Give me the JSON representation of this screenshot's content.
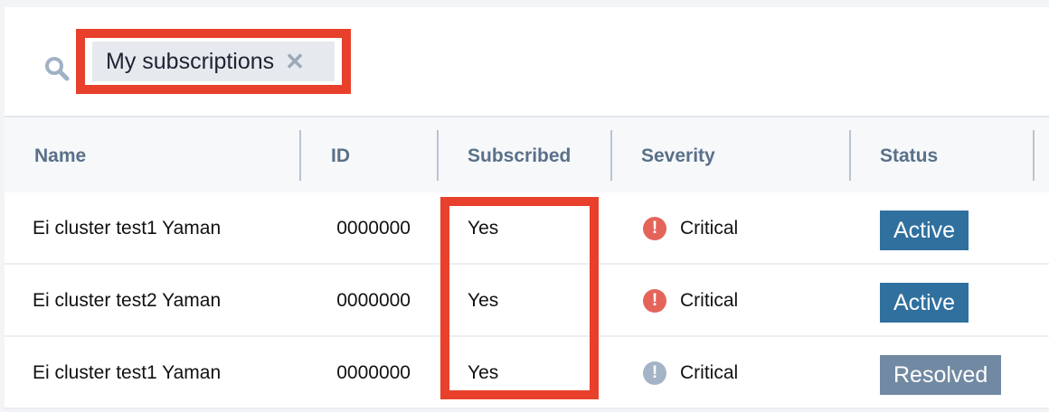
{
  "search": {
    "filter_tag": "My subscriptions",
    "remove_icon": "close-icon"
  },
  "columns": [
    "Name",
    "ID",
    "Subscribed",
    "Severity",
    "Status"
  ],
  "rows": [
    {
      "name": "Ei cluster test1 Yaman",
      "id": "0000000",
      "subscribed": "Yes",
      "severity": "Critical",
      "severity_color": "#e5645a",
      "status": "Active",
      "status_color": "#30709f"
    },
    {
      "name": "Ei cluster test2 Yaman",
      "id": "0000000",
      "subscribed": "Yes",
      "severity": "Critical",
      "severity_color": "#e5645a",
      "status": "Active",
      "status_color": "#30709f"
    },
    {
      "name": "Ei cluster test1 Yaman",
      "id": "0000000",
      "subscribed": "Yes",
      "severity": "Critical",
      "severity_color": "#a4b4c6",
      "status": "Resolved",
      "status_color": "#7189a2"
    }
  ],
  "highlight_color": "#e8402a"
}
